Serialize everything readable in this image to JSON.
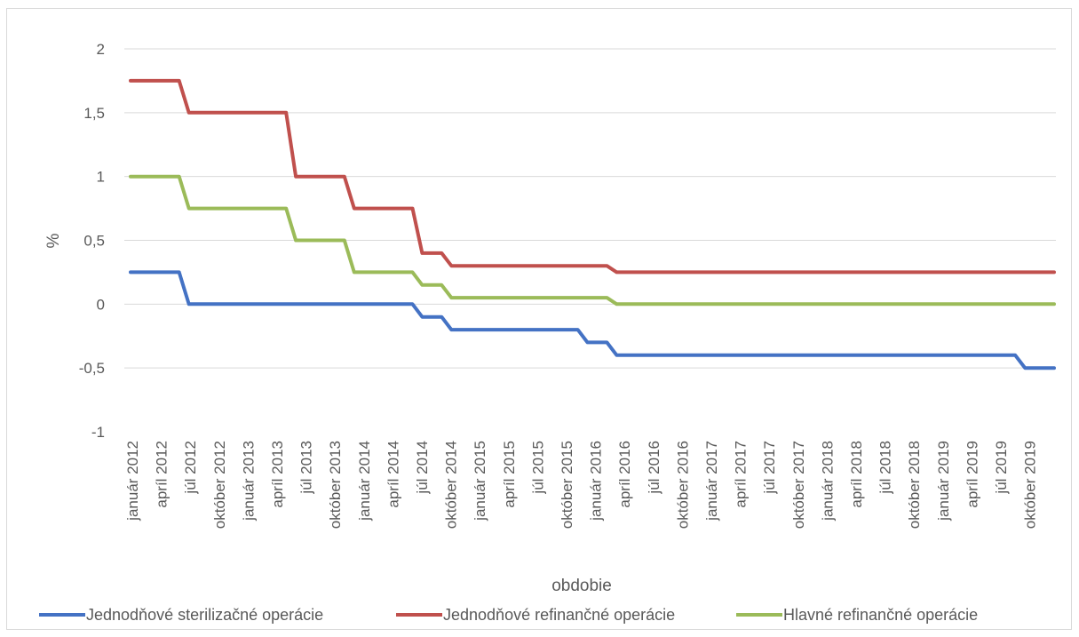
{
  "chart_data": {
    "type": "line",
    "title": "",
    "xlabel": "obdobie",
    "ylabel": "%",
    "ylim": [
      -1,
      2
    ],
    "yticks": [
      "2",
      "1,5",
      "1",
      "0,5",
      "0",
      "-0,5",
      "-1"
    ],
    "ytick_values": [
      2,
      1.5,
      1,
      0.5,
      0,
      -0.5,
      -1
    ],
    "grid": true,
    "legend_position": "bottom",
    "x_labels": [
      "január 2012",
      "apríl 2012",
      "júl 2012",
      "október 2012",
      "január 2013",
      "apríl 2013",
      "júl 2013",
      "október 2013",
      "január 2014",
      "apríl 2014",
      "júl 2014",
      "október 2014",
      "január 2015",
      "apríl 2015",
      "júl 2015",
      "október 2015",
      "január 2016",
      "apríl 2016",
      "júl 2016",
      "október 2016",
      "január 2017",
      "apríl 2017",
      "júl 2017",
      "október 2017",
      "január 2018",
      "apríl 2018",
      "júl 2018",
      "október 2018",
      "január 2019",
      "apríl 2019",
      "júl 2019",
      "október 2019"
    ],
    "series": [
      {
        "name": "Jednodňové sterilizačné operácie",
        "color": "#4472c4",
        "values": [
          0.25,
          0.25,
          0.25,
          0.25,
          0.25,
          0.25,
          0,
          0,
          0,
          0,
          0,
          0,
          0,
          0,
          0,
          0,
          0,
          0,
          0,
          0,
          0,
          0,
          0,
          0,
          0,
          0,
          0,
          0,
          0,
          0,
          -0.1,
          -0.1,
          -0.1,
          -0.2,
          -0.2,
          -0.2,
          -0.2,
          -0.2,
          -0.2,
          -0.2,
          -0.2,
          -0.2,
          -0.2,
          -0.2,
          -0.2,
          -0.2,
          -0.2,
          -0.3,
          -0.3,
          -0.3,
          -0.4,
          -0.4,
          -0.4,
          -0.4,
          -0.4,
          -0.4,
          -0.4,
          -0.4,
          -0.4,
          -0.4,
          -0.4,
          -0.4,
          -0.4,
          -0.4,
          -0.4,
          -0.4,
          -0.4,
          -0.4,
          -0.4,
          -0.4,
          -0.4,
          -0.4,
          -0.4,
          -0.4,
          -0.4,
          -0.4,
          -0.4,
          -0.4,
          -0.4,
          -0.4,
          -0.4,
          -0.4,
          -0.4,
          -0.4,
          -0.4,
          -0.4,
          -0.4,
          -0.4,
          -0.4,
          -0.4,
          -0.4,
          -0.4,
          -0.5,
          -0.5,
          -0.5,
          -0.5
        ]
      },
      {
        "name": "Jednodňové refinančné operácie",
        "color": "#c0504d",
        "values": [
          1.75,
          1.75,
          1.75,
          1.75,
          1.75,
          1.75,
          1.5,
          1.5,
          1.5,
          1.5,
          1.5,
          1.5,
          1.5,
          1.5,
          1.5,
          1.5,
          1.5,
          1,
          1,
          1,
          1,
          1,
          1,
          0.75,
          0.75,
          0.75,
          0.75,
          0.75,
          0.75,
          0.75,
          0.4,
          0.4,
          0.4,
          0.3,
          0.3,
          0.3,
          0.3,
          0.3,
          0.3,
          0.3,
          0.3,
          0.3,
          0.3,
          0.3,
          0.3,
          0.3,
          0.3,
          0.3,
          0.3,
          0.3,
          0.25,
          0.25,
          0.25,
          0.25,
          0.25,
          0.25,
          0.25,
          0.25,
          0.25,
          0.25,
          0.25,
          0.25,
          0.25,
          0.25,
          0.25,
          0.25,
          0.25,
          0.25,
          0.25,
          0.25,
          0.25,
          0.25,
          0.25,
          0.25,
          0.25,
          0.25,
          0.25,
          0.25,
          0.25,
          0.25,
          0.25,
          0.25,
          0.25,
          0.25,
          0.25,
          0.25,
          0.25,
          0.25,
          0.25,
          0.25,
          0.25,
          0.25,
          0.25,
          0.25,
          0.25,
          0.25
        ]
      },
      {
        "name": "Hlavné refinančné operácie",
        "color": "#9bbb59",
        "values": [
          1,
          1,
          1,
          1,
          1,
          1,
          0.75,
          0.75,
          0.75,
          0.75,
          0.75,
          0.75,
          0.75,
          0.75,
          0.75,
          0.75,
          0.75,
          0.5,
          0.5,
          0.5,
          0.5,
          0.5,
          0.5,
          0.25,
          0.25,
          0.25,
          0.25,
          0.25,
          0.25,
          0.25,
          0.15,
          0.15,
          0.15,
          0.05,
          0.05,
          0.05,
          0.05,
          0.05,
          0.05,
          0.05,
          0.05,
          0.05,
          0.05,
          0.05,
          0.05,
          0.05,
          0.05,
          0.05,
          0.05,
          0.05,
          0,
          0,
          0,
          0,
          0,
          0,
          0,
          0,
          0,
          0,
          0,
          0,
          0,
          0,
          0,
          0,
          0,
          0,
          0,
          0,
          0,
          0,
          0,
          0,
          0,
          0,
          0,
          0,
          0,
          0,
          0,
          0,
          0,
          0,
          0,
          0,
          0,
          0,
          0,
          0,
          0,
          0,
          0,
          0,
          0,
          0
        ]
      }
    ]
  }
}
